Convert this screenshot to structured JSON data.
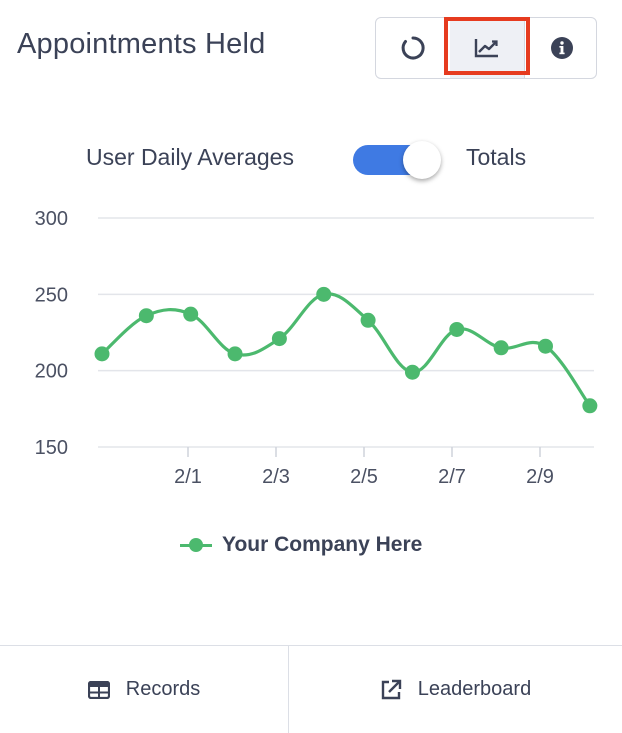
{
  "header": {
    "title": "Appointments Held",
    "buttons": [
      {
        "icon": "circle-notch-icon",
        "active": false
      },
      {
        "icon": "line-chart-icon",
        "active": true
      },
      {
        "icon": "info-circle-icon",
        "active": false
      }
    ]
  },
  "toggle": {
    "left_label": "User Daily Averages",
    "right_label": "Totals",
    "state": "on",
    "accent": "#3f7ae3"
  },
  "chart_data": {
    "type": "line",
    "x_ticks": [
      "2/1",
      "2/3",
      "2/5",
      "2/7",
      "2/9"
    ],
    "y_ticks": [
      "150",
      "200",
      "250",
      "300"
    ],
    "ylim": [
      150,
      300
    ],
    "grid": true,
    "series": [
      {
        "name": "Your Company Here",
        "color": "#4cb96e",
        "x": [
          "1/30",
          "1/31",
          "2/1",
          "2/2",
          "2/3",
          "2/4",
          "2/5",
          "2/6",
          "2/7",
          "2/8",
          "2/9",
          "2/10"
        ],
        "values": [
          211,
          236,
          237,
          211,
          221,
          250,
          233,
          199,
          227,
          215,
          216,
          177
        ]
      }
    ],
    "legend_position": "bottom"
  },
  "footer": {
    "records_label": "Records",
    "leaderboard_label": "Leaderboard"
  }
}
